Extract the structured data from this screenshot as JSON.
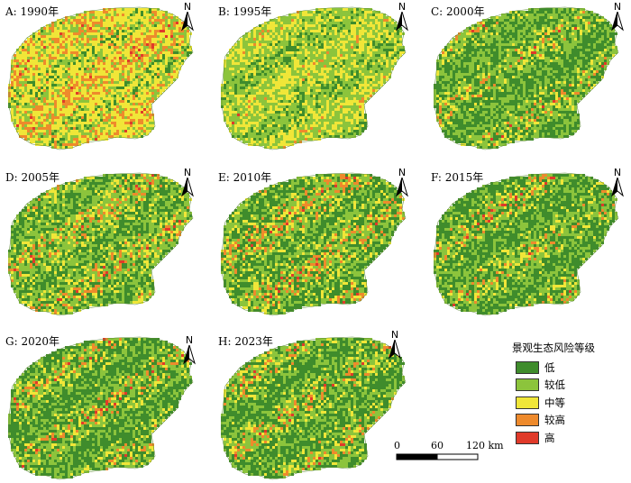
{
  "panels": [
    {
      "label": "A: 1990年",
      "weights": [
        0.15,
        0.2,
        0.35,
        0.25,
        0.05
      ]
    },
    {
      "label": "B: 1995年",
      "weights": [
        0.22,
        0.38,
        0.34,
        0.05,
        0.01
      ]
    },
    {
      "label": "C: 2000年",
      "weights": [
        0.45,
        0.32,
        0.12,
        0.09,
        0.02
      ]
    },
    {
      "label": "D: 2005年",
      "weights": [
        0.38,
        0.32,
        0.14,
        0.13,
        0.03
      ]
    },
    {
      "label": "E: 2010年",
      "weights": [
        0.42,
        0.25,
        0.13,
        0.15,
        0.05
      ]
    },
    {
      "label": "F: 2015年",
      "weights": [
        0.48,
        0.27,
        0.12,
        0.1,
        0.03
      ]
    },
    {
      "label": "G: 2020年",
      "weights": [
        0.48,
        0.27,
        0.12,
        0.1,
        0.03
      ]
    },
    {
      "label": "H: 2023年",
      "weights": [
        0.47,
        0.26,
        0.13,
        0.11,
        0.03
      ]
    }
  ],
  "north_arrow": {
    "letter": "N"
  },
  "legend": {
    "title": "景观生态风险等级",
    "items": [
      {
        "label": "低",
        "color": "#3f8c2c"
      },
      {
        "label": "较低",
        "color": "#8cc43c"
      },
      {
        "label": "中等",
        "color": "#f0e638"
      },
      {
        "label": "较高",
        "color": "#ee8a2c"
      },
      {
        "label": "高",
        "color": "#e03a2a"
      }
    ]
  },
  "scale_bar": {
    "ticks": [
      "0",
      "60",
      "120 km"
    ]
  }
}
